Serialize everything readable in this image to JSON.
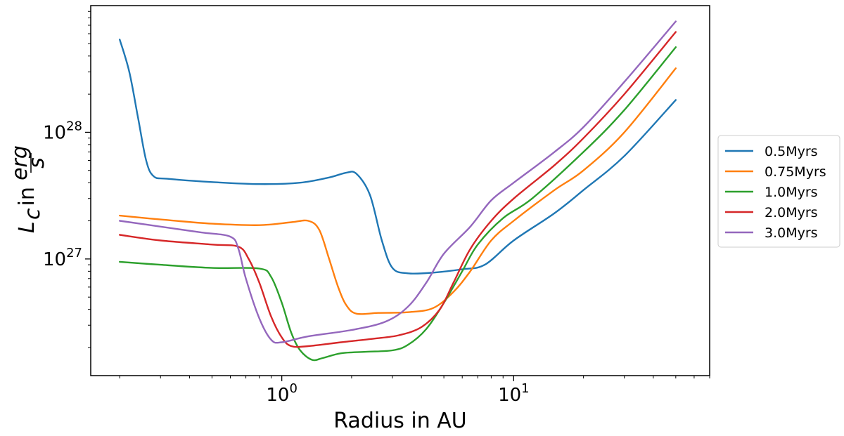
{
  "chart_data": {
    "type": "line",
    "title": "",
    "xlabel": "Radius in AU",
    "ylabel": {
      "main": "L",
      "sub": "c",
      "mid": " in ",
      "frac_num": "erg",
      "frac_den": "s"
    },
    "xscale": "log",
    "yscale": "log",
    "xlim": [
      0.15,
      70
    ],
    "ylim": [
      1.2e+26,
      1e+29
    ],
    "xticks": [
      {
        "value": 1,
        "base": "10",
        "exp": "0"
      },
      {
        "value": 10,
        "base": "10",
        "exp": "1"
      }
    ],
    "yticks": [
      {
        "value": 1e+27,
        "base": "10",
        "exp": "27"
      },
      {
        "value": 1e+28,
        "base": "10",
        "exp": "28"
      }
    ],
    "grid": false,
    "legend": {
      "position": "outside-right"
    },
    "series": [
      {
        "name": "0.5Myrs",
        "color": "#1f77b4",
        "points": [
          [
            0.2,
            5.4e+28
          ],
          [
            0.22,
            3e+28
          ],
          [
            0.24,
            1.3e+28
          ],
          [
            0.26,
            6e+27
          ],
          [
            0.28,
            4.5e+27
          ],
          [
            0.32,
            4.3e+27
          ],
          [
            0.5,
            4.05e+27
          ],
          [
            0.8,
            3.9e+27
          ],
          [
            1.2,
            4e+27
          ],
          [
            1.6,
            4.4e+27
          ],
          [
            1.9,
            4.8e+27
          ],
          [
            2.1,
            4.7e+27
          ],
          [
            2.4,
            3.2e+27
          ],
          [
            2.7,
            1.4e+27
          ],
          [
            3.0,
            8.5e+26
          ],
          [
            3.5,
            7.7e+26
          ],
          [
            4.5,
            7.8e+26
          ],
          [
            6.0,
            8.3e+26
          ],
          [
            7.5,
            9e+26
          ],
          [
            10,
            1.4e+27
          ],
          [
            15,
            2.3e+27
          ],
          [
            20,
            3.5e+27
          ],
          [
            30,
            6.5e+27
          ],
          [
            50,
            1.8e+28
          ]
        ]
      },
      {
        "name": "0.75Myrs",
        "color": "#ff7f0e",
        "points": [
          [
            0.2,
            2.2e+27
          ],
          [
            0.3,
            2.05e+27
          ],
          [
            0.5,
            1.9e+27
          ],
          [
            0.8,
            1.85e+27
          ],
          [
            1.1,
            1.95e+27
          ],
          [
            1.3,
            2e+27
          ],
          [
            1.45,
            1.7e+27
          ],
          [
            1.6,
            1e+27
          ],
          [
            1.75,
            6e+26
          ],
          [
            1.9,
            4.3e+26
          ],
          [
            2.1,
            3.7e+26
          ],
          [
            2.6,
            3.75e+26
          ],
          [
            3.5,
            3.8e+26
          ],
          [
            4.5,
            4.1e+26
          ],
          [
            5.5,
            5.5e+26
          ],
          [
            6.5,
            8e+26
          ],
          [
            8,
            1.4e+27
          ],
          [
            10,
            2e+27
          ],
          [
            15,
            3.5e+27
          ],
          [
            20,
            5e+27
          ],
          [
            30,
            1e+28
          ],
          [
            50,
            3.2e+28
          ]
        ]
      },
      {
        "name": "1.0Myrs",
        "color": "#2ca02c",
        "points": [
          [
            0.2,
            9.5e+26
          ],
          [
            0.3,
            9e+26
          ],
          [
            0.5,
            8.5e+26
          ],
          [
            0.8,
            8.4e+26
          ],
          [
            0.9,
            7.2e+26
          ],
          [
            1.0,
            4.5e+26
          ],
          [
            1.1,
            2.6e+26
          ],
          [
            1.2,
            1.9e+26
          ],
          [
            1.35,
            1.6e+26
          ],
          [
            1.5,
            1.65e+26
          ],
          [
            1.8,
            1.8e+26
          ],
          [
            2.3,
            1.85e+26
          ],
          [
            3.0,
            1.9e+26
          ],
          [
            3.5,
            2.1e+26
          ],
          [
            4.2,
            2.8e+26
          ],
          [
            5.0,
            4.5e+26
          ],
          [
            6.0,
            8e+26
          ],
          [
            7.0,
            1.3e+27
          ],
          [
            9.0,
            2.1e+27
          ],
          [
            12,
            3e+27
          ],
          [
            20,
            7e+27
          ],
          [
            30,
            1.5e+28
          ],
          [
            50,
            4.7e+28
          ]
        ]
      },
      {
        "name": "2.0Myrs",
        "color": "#d62728",
        "points": [
          [
            0.2,
            1.55e+27
          ],
          [
            0.3,
            1.4e+27
          ],
          [
            0.5,
            1.3e+27
          ],
          [
            0.65,
            1.25e+27
          ],
          [
            0.72,
            1e+27
          ],
          [
            0.8,
            6.5e+26
          ],
          [
            0.9,
            3.5e+26
          ],
          [
            1.0,
            2.4e+26
          ],
          [
            1.1,
            2.05e+26
          ],
          [
            1.3,
            2.05e+26
          ],
          [
            1.8,
            2.2e+26
          ],
          [
            2.5,
            2.35e+26
          ],
          [
            3.2,
            2.5e+26
          ],
          [
            4.0,
            2.9e+26
          ],
          [
            4.8,
            4e+26
          ],
          [
            5.5,
            6.5e+26
          ],
          [
            6.5,
            1.2e+27
          ],
          [
            8,
            2e+27
          ],
          [
            10,
            3e+27
          ],
          [
            15,
            5.5e+27
          ],
          [
            20,
            9e+27
          ],
          [
            30,
            2e+28
          ],
          [
            50,
            6.2e+28
          ]
        ]
      },
      {
        "name": "3.0Myrs",
        "color": "#9467bd",
        "points": [
          [
            0.2,
            2e+27
          ],
          [
            0.3,
            1.8e+27
          ],
          [
            0.45,
            1.62e+27
          ],
          [
            0.6,
            1.5e+27
          ],
          [
            0.65,
            1.2e+27
          ],
          [
            0.7,
            7e+26
          ],
          [
            0.8,
            3.4e+26
          ],
          [
            0.9,
            2.3e+26
          ],
          [
            1.0,
            2.2e+26
          ],
          [
            1.3,
            2.45e+26
          ],
          [
            2.0,
            2.75e+26
          ],
          [
            2.8,
            3.2e+26
          ],
          [
            3.5,
            4.2e+26
          ],
          [
            4.2,
            6.5e+26
          ],
          [
            5.0,
            1.1e+27
          ],
          [
            6.5,
            1.8e+27
          ],
          [
            8,
            2.9e+27
          ],
          [
            10,
            4e+27
          ],
          [
            15,
            7e+27
          ],
          [
            20,
            1.1e+28
          ],
          [
            30,
            2.5e+28
          ],
          [
            50,
            7.5e+28
          ]
        ]
      }
    ]
  }
}
